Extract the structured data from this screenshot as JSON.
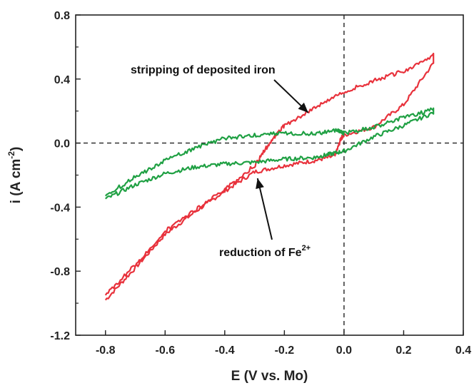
{
  "chart_data": {
    "type": "line",
    "title": "",
    "xlabel": "E (V vs. Mo)",
    "ylabel_main": "i (A cm",
    "ylabel_sup": "-2",
    "ylabel_close": ")",
    "xlim": [
      -0.9,
      0.4
    ],
    "ylim": [
      -1.2,
      0.8
    ],
    "xticks": [
      "-0.8",
      "-0.6",
      "-0.4",
      "-0.2",
      "0.0",
      "0.2",
      "0.4"
    ],
    "yticks": [
      "-1.2",
      "-0.8",
      "-0.4",
      "0.0",
      "0.4",
      "0.8"
    ],
    "reference_lines": {
      "x": 0.0,
      "y": 0.0,
      "style": "dashed"
    },
    "grid": false,
    "legend": "none",
    "annotations": [
      {
        "text": "stripping of deposited iron",
        "arrow_to": [
          -0.12,
          0.19
        ]
      },
      {
        "main": "reduction of Fe",
        "sup": "2+",
        "arrow_to": [
          -0.29,
          -0.22
        ]
      }
    ],
    "series": [
      {
        "color": "#e8323c",
        "points": [
          [
            -0.8,
            -0.98
          ],
          [
            -0.7,
            -0.78
          ],
          [
            -0.6,
            -0.57
          ],
          [
            -0.5,
            -0.43
          ],
          [
            -0.4,
            -0.3
          ],
          [
            -0.3,
            -0.18
          ],
          [
            -0.2,
            -0.14
          ],
          [
            -0.1,
            -0.11
          ],
          [
            -0.03,
            -0.08
          ],
          [
            -0.01,
            0.03
          ],
          [
            0.0,
            0.05
          ],
          [
            0.1,
            0.1
          ],
          [
            0.2,
            0.24
          ],
          [
            0.3,
            0.5
          ],
          [
            0.3,
            0.55
          ],
          [
            0.2,
            0.45
          ],
          [
            0.1,
            0.39
          ],
          [
            0.0,
            0.32
          ],
          [
            -0.1,
            0.22
          ],
          [
            -0.2,
            0.11
          ],
          [
            -0.25,
            0.0
          ],
          [
            -0.3,
            -0.14
          ],
          [
            -0.4,
            -0.29
          ],
          [
            -0.5,
            -0.42
          ],
          [
            -0.6,
            -0.55
          ],
          [
            -0.7,
            -0.76
          ],
          [
            -0.8,
            -0.95
          ]
        ]
      },
      {
        "color": "#1fa043",
        "points": [
          [
            -0.8,
            -0.35
          ],
          [
            -0.7,
            -0.26
          ],
          [
            -0.6,
            -0.19
          ],
          [
            -0.5,
            -0.15
          ],
          [
            -0.4,
            -0.13
          ],
          [
            -0.3,
            -0.12
          ],
          [
            -0.2,
            -0.1
          ],
          [
            -0.1,
            -0.09
          ],
          [
            -0.05,
            -0.07
          ],
          [
            0.0,
            -0.05
          ],
          [
            0.1,
            0.04
          ],
          [
            0.2,
            0.11
          ],
          [
            0.3,
            0.19
          ],
          [
            0.3,
            0.21
          ],
          [
            0.2,
            0.16
          ],
          [
            0.1,
            0.1
          ],
          [
            0.0,
            0.06
          ],
          [
            -0.02,
            0.08
          ],
          [
            -0.1,
            0.06
          ],
          [
            -0.2,
            0.06
          ],
          [
            -0.3,
            0.05
          ],
          [
            -0.4,
            0.03
          ],
          [
            -0.5,
            -0.03
          ],
          [
            -0.6,
            -0.11
          ],
          [
            -0.7,
            -0.21
          ],
          [
            -0.8,
            -0.33
          ]
        ]
      }
    ]
  }
}
